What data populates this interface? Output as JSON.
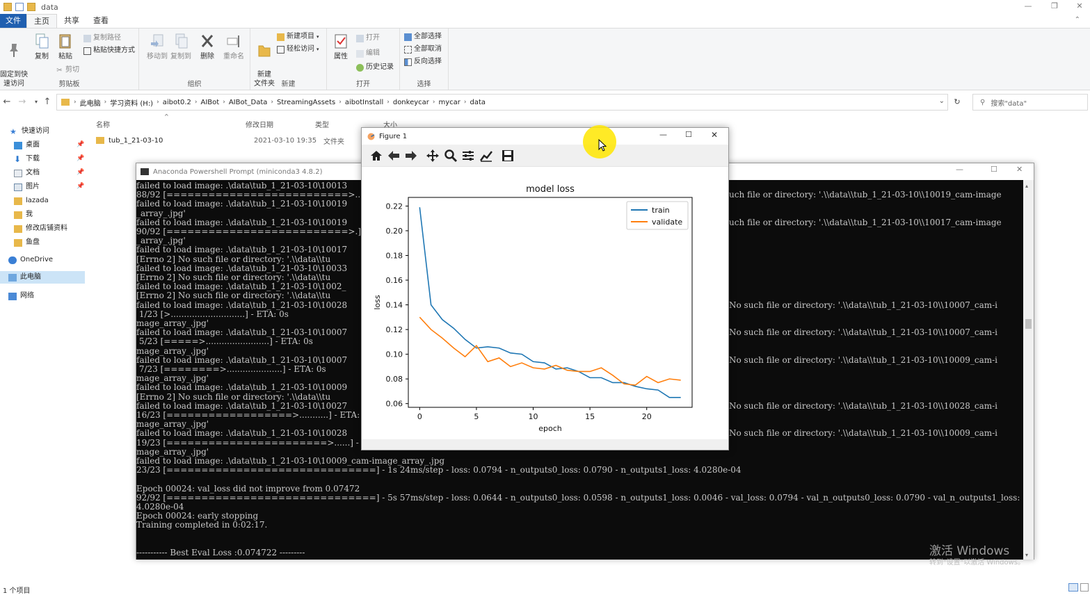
{
  "explorer": {
    "title": "data",
    "ribbon_tabs": [
      "文件",
      "主页",
      "共享",
      "查看"
    ],
    "clipboard": {
      "pin_label": "固定到快\n速访问",
      "copy_label": "复制",
      "paste_label": "粘贴",
      "copy_path": "复制路径",
      "paste_shortcut": "粘贴快捷方式",
      "cut": "剪切",
      "group": "剪贴板"
    },
    "organize": {
      "move_to": "移动到",
      "copy_to": "复制到",
      "delete": "删除",
      "rename": "重命名",
      "group": "组织"
    },
    "new": {
      "new_folder": "新建\n文件夹",
      "new_item": "新建项目",
      "easy_access": "轻松访问",
      "group": "新建"
    },
    "open": {
      "properties": "属性",
      "open": "打开",
      "edit": "编辑",
      "history": "历史记录",
      "group": "打开"
    },
    "select": {
      "select_all": "全部选择",
      "select_none": "全部取消",
      "invert": "反向选择",
      "group": "选择"
    },
    "breadcrumbs": [
      "此电脑",
      "学习资料 (H:)",
      "aibot0.2",
      "AIBot",
      "AIBot_Data",
      "StreamingAssets",
      "aibotInstall",
      "donkeycar",
      "mycar",
      "data"
    ],
    "search_placeholder": "搜索\"data\"",
    "columns": {
      "name": "名称",
      "modified": "修改日期",
      "type": "类型",
      "size": "大小"
    },
    "files": [
      {
        "name": "tub_1_21-03-10",
        "modified": "2021-03-10 19:35",
        "type": "文件夹"
      }
    ],
    "nav": {
      "quick_access": "快速访问",
      "items": [
        "桌面",
        "下载",
        "文档",
        "图片",
        "lazada",
        "我",
        "修改店铺资料",
        "鱼盘"
      ],
      "onedrive": "OneDrive",
      "this_pc": "此电脑",
      "network": "网络"
    },
    "status": "1 个项目"
  },
  "console": {
    "title": "Anaconda Powershell Prompt (miniconda3 4.8.2)",
    "left_lines": [
      "failed to load image: .\\data\\tub_1_21-03-10\\10013",
      "88/92 [==========================>..] - ETA: 0s",
      "failed to load image: .\\data\\tub_1_21-03-10\\10019",
      "_array_.jpg'",
      "failed to load image: .\\data\\tub_1_21-03-10\\10019",
      "90/92 [==========================>.] - ETA: 0s",
      "_array_.jpg'",
      "failed to load image: .\\data\\tub_1_21-03-10\\10017",
      "[Errno 2] No such file or directory: '.\\\\data\\\\tu",
      "failed to load image: .\\data\\tub_1_21-03-10\\10033",
      "[Errno 2] No such file or directory: '.\\\\data\\\\tu",
      "failed to load image: .\\data\\tub_1_21-03-10\\1002_",
      "[Errno 2] No such file or directory: '.\\\\data\\\\tu",
      "failed to load image: .\\data\\tub_1_21-03-10\\10028",
      " 1/23 [>............................] - ETA: 0s",
      "mage_array_.jpg'",
      "failed to load image: .\\data\\tub_1_21-03-10\\10007",
      " 5/23 [=====>........................] - ETA: 0s",
      "mage_array_.jpg'",
      "failed to load image: .\\data\\tub_1_21-03-10\\10007",
      " 7/23 [========>.....................] - ETA: 0s",
      "mage_array_.jpg'",
      "failed to load image: .\\data\\tub_1_21-03-10\\10009",
      "[Errno 2] No such file or directory: '.\\\\data\\\\tu",
      "failed to load image: .\\data\\tub_1_21-03-10\\10027",
      "16/23 [==================>...........] - ETA: 0s",
      "mage_array_.jpg'",
      "failed to load image: .\\data\\tub_1_21-03-10\\10028",
      "19/23 [=======================>......] - ETA: 0s",
      "mage_array_.jpg'",
      "failed to load image: .\\data\\tub_1_21-03-10\\10009_cam-image_array_.jpg",
      "23/23 [==============================] - 1s 24ms/step - loss: 0.0794 - n_outputs0_loss: 0.0790 - n_outputs1_loss: 4.0280e-04",
      "",
      "Epoch 00024: val_loss did not improve from 0.07472",
      "92/92 [==============================] - 5s 57ms/step - loss: 0.0644 - n_outputs0_loss: 0.0598 - n_outputs1_loss: 0.0046 - val_loss: 0.0794 - val_n_outputs0_loss: 0.0790 - val_n_outputs1_loss:",
      "4.0280e-04",
      "Epoch 00024: early stopping",
      "Training completed in 0:02:17.",
      "",
      "",
      "----------- Best Eval Loss :0.074722 ---------"
    ],
    "right_lines": [
      {
        "row": 1,
        "text": "uch file or directory: '.\\\\data\\\\tub_1_21-03-10\\\\10019_cam-image"
      },
      {
        "row": 4,
        "text": "uch file or directory: '.\\\\data\\\\tub_1_21-03-10\\\\10017_cam-image"
      },
      {
        "row": 13,
        "text": "No such file or directory: '.\\\\data\\\\tub_1_21-03-10\\\\10007_cam-i"
      },
      {
        "row": 16,
        "text": "No such file or directory: '.\\\\data\\\\tub_1_21-03-10\\\\10007_cam-i"
      },
      {
        "row": 19,
        "text": "No such file or directory: '.\\\\data\\\\tub_1_21-03-10\\\\10009_cam-i"
      },
      {
        "row": 24,
        "text": "No such file or directory: '.\\\\data\\\\tub_1_21-03-10\\\\10028_cam-i"
      },
      {
        "row": 27,
        "text": "No such file or directory: '.\\\\data\\\\tub_1_21-03-10\\\\10009_cam-i"
      }
    ],
    "watermark": "激活 Windows",
    "watermark_sub": "转到\"设置\"以激活 Windows。"
  },
  "figure": {
    "title": "Figure 1",
    "toolbar": [
      "home-icon",
      "back-icon",
      "forward-icon",
      "pan-icon",
      "zoom-icon",
      "configure-icon",
      "edit-axis-icon",
      "save-icon"
    ]
  },
  "chart_data": {
    "type": "line",
    "title": "model loss",
    "xlabel": "epoch",
    "ylabel": "loss",
    "xlim": [
      -1,
      24
    ],
    "ylim": [
      0.057,
      0.227
    ],
    "xticks": [
      0,
      5,
      10,
      15,
      20
    ],
    "yticks": [
      0.06,
      0.08,
      0.1,
      0.12,
      0.14,
      0.16,
      0.18,
      0.2,
      0.22
    ],
    "legend": "top-right",
    "series": [
      {
        "name": "train",
        "color": "#1f77b4",
        "x": [
          0,
          1,
          2,
          3,
          4,
          5,
          6,
          7,
          8,
          9,
          10,
          11,
          12,
          13,
          14,
          15,
          16,
          17,
          18,
          19,
          20,
          21,
          22,
          23
        ],
        "values": [
          0.219,
          0.14,
          0.128,
          0.121,
          0.112,
          0.105,
          0.106,
          0.105,
          0.101,
          0.1,
          0.094,
          0.093,
          0.088,
          0.089,
          0.086,
          0.081,
          0.081,
          0.077,
          0.077,
          0.074,
          0.072,
          0.071,
          0.065,
          0.065
        ]
      },
      {
        "name": "validate",
        "color": "#ff7f0e",
        "x": [
          0,
          1,
          2,
          3,
          4,
          5,
          6,
          7,
          8,
          9,
          10,
          11,
          12,
          13,
          14,
          15,
          16,
          17,
          18,
          19,
          20,
          21,
          22,
          23
        ],
        "values": [
          0.13,
          0.12,
          0.113,
          0.105,
          0.098,
          0.107,
          0.094,
          0.097,
          0.09,
          0.093,
          0.089,
          0.088,
          0.091,
          0.087,
          0.086,
          0.086,
          0.089,
          0.083,
          0.076,
          0.075,
          0.082,
          0.077,
          0.08,
          0.079
        ]
      }
    ]
  }
}
